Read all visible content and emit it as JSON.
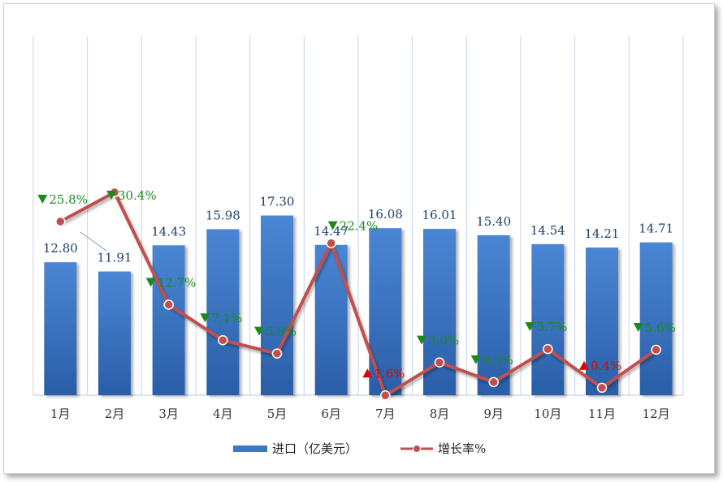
{
  "chart_data": {
    "type": "bar",
    "categories": [
      "1月",
      "2月",
      "3月",
      "4月",
      "5月",
      "6月",
      "7月",
      "8月",
      "9月",
      "10月",
      "11月",
      "12月"
    ],
    "series": [
      {
        "name": "进口（亿美元）",
        "type": "bar",
        "values": [
          12.8,
          11.91,
          14.43,
          15.98,
          17.3,
          14.47,
          16.08,
          16.01,
          15.4,
          14.54,
          14.21,
          14.71
        ],
        "labels": [
          "12.80",
          "11.91",
          "14.43",
          "15.98",
          "17.30",
          "14.47",
          "16.08",
          "16.01",
          "15.40",
          "14.54",
          "14.21",
          "14.71"
        ],
        "color": "#3a78c9"
      },
      {
        "name": "增长率%",
        "type": "line",
        "values": [
          -25.8,
          -30.4,
          -12.7,
          -7.1,
          -5.0,
          -22.4,
          1.6,
          -3.6,
          -0.5,
          -5.7,
          0.4,
          -5.6
        ],
        "labels": [
          "25.8%",
          "30.4%",
          "12.7%",
          "7.1%",
          "5.0%",
          "22.4%",
          "1.6%",
          "3.6%",
          "0.5%",
          "5.7%",
          "0.4%",
          "5.6%"
        ],
        "color": "#c0504d"
      }
    ],
    "down_color": "#1a8a1a",
    "up_color": "#e00000",
    "grid": true,
    "legend_position": "bottom"
  }
}
